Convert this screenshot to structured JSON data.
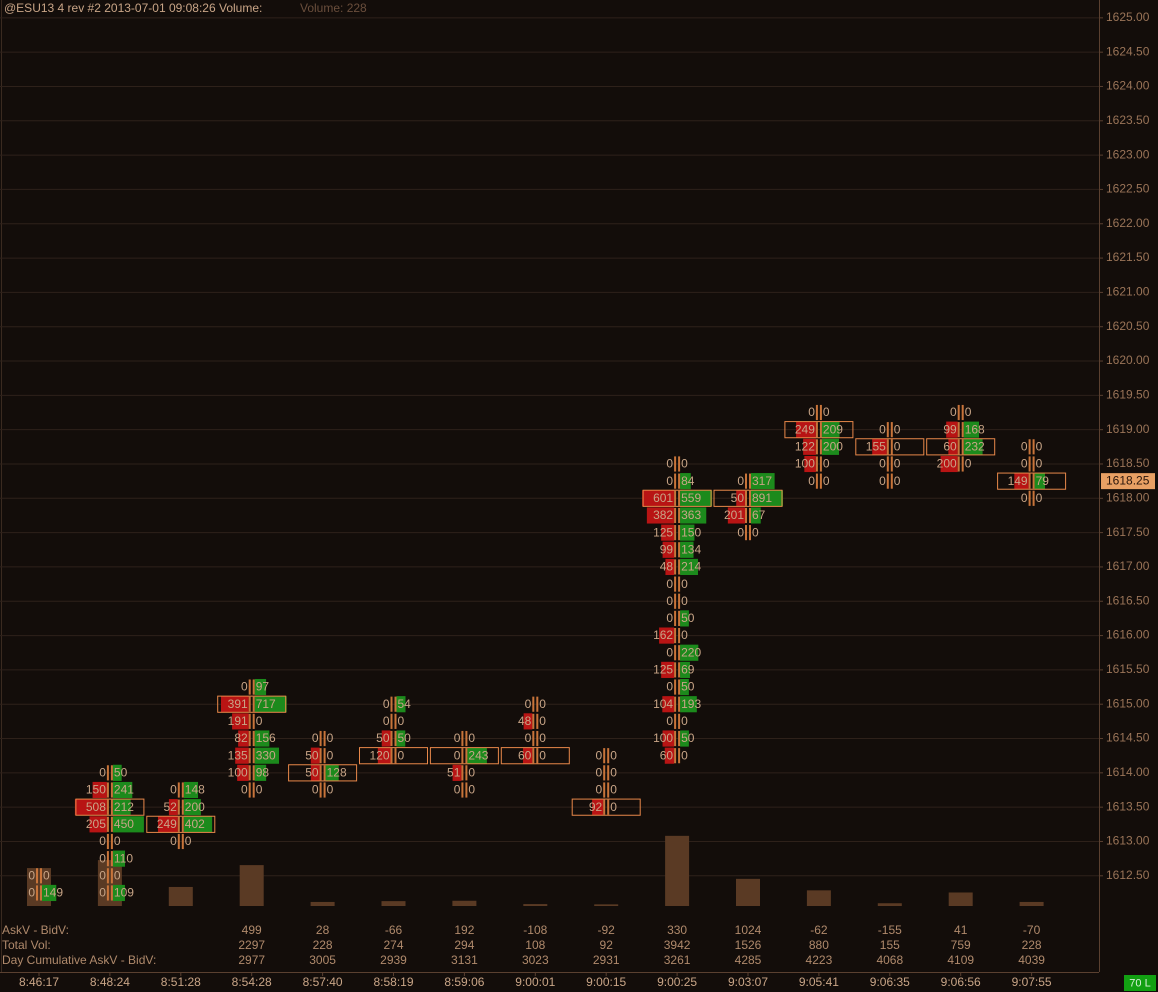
{
  "chart_data": {
    "type": "footprint",
    "title": "@ESU13  4 rev  #2 2013-07-01 09:08:26 Volume:",
    "subtitle": "Volume: 228",
    "ylim": [
      1612.06,
      1625.26
    ],
    "yticks": [
      {
        "value": 1612.5,
        "label": "1612.50"
      },
      {
        "value": 1613,
        "label": "1613.00"
      },
      {
        "value": 1613.5,
        "label": "1613.50"
      },
      {
        "value": 1614,
        "label": "1614.00"
      },
      {
        "value": 1614.5,
        "label": "1614.50"
      },
      {
        "value": 1615,
        "label": "1615.00"
      },
      {
        "value": 1615.5,
        "label": "1615.50"
      },
      {
        "value": 1616,
        "label": "1616.00"
      },
      {
        "value": 1616.5,
        "label": "1616.50"
      },
      {
        "value": 1617,
        "label": "1617.00"
      },
      {
        "value": 1617.5,
        "label": "1617.50"
      },
      {
        "value": 1618,
        "label": "1618.00"
      },
      {
        "value": 1618.5,
        "label": "1618.50"
      },
      {
        "value": 1619,
        "label": "1619.00"
      },
      {
        "value": 1619.5,
        "label": "1619.50"
      },
      {
        "value": 1620,
        "label": "1620.00"
      },
      {
        "value": 1620.5,
        "label": "1620.50"
      },
      {
        "value": 1621,
        "label": "1621.00"
      },
      {
        "value": 1621.5,
        "label": "1621.50"
      },
      {
        "value": 1622,
        "label": "1622.00"
      },
      {
        "value": 1622.5,
        "label": "1622.50"
      },
      {
        "value": 1623,
        "label": "1623.00"
      },
      {
        "value": 1623.5,
        "label": "1623.50"
      },
      {
        "value": 1624,
        "label": "1624.00"
      },
      {
        "value": 1624.5,
        "label": "1624.50"
      },
      {
        "value": 1625,
        "label": "1625.00"
      }
    ],
    "grid": true,
    "last_price": {
      "value": 1618.25,
      "label": "1618.25"
    },
    "summary_labels": [
      "AskV - BidV:",
      "Total Vol:",
      "Day Cumulative AskV - BidV:"
    ],
    "status": "70 L",
    "bid_color": "#b81414",
    "ask_color": "#1c8a1c",
    "volume_color": "#5a3a24",
    "columns": [
      {
        "time": "8:46:17",
        "volume": 2130,
        "rows": [
          {
            "price": 1612.5,
            "bid": 0,
            "ask": 0
          },
          {
            "price": 1612.25,
            "bid": 0,
            "ask": 149
          }
        ]
      },
      {
        "time": "8:48:24",
        "volume": 2580,
        "rows": [
          {
            "price": 1614,
            "bid": 0,
            "ask": 50
          },
          {
            "price": 1613.75,
            "bid": 150,
            "ask": 241
          },
          {
            "price": 1613.5,
            "bid": 508,
            "ask": 212,
            "poc": true
          },
          {
            "price": 1613.25,
            "bid": 205,
            "ask": 450
          },
          {
            "price": 1613,
            "bid": 0,
            "ask": 0
          },
          {
            "price": 1612.75,
            "bid": 0,
            "ask": 110
          },
          {
            "price": 1612.5,
            "bid": 0,
            "ask": 0
          },
          {
            "price": 1612.25,
            "bid": 0,
            "ask": 109
          }
        ]
      },
      {
        "time": "8:51:28",
        "volume": 1070,
        "rows": [
          {
            "price": 1613.75,
            "bid": 0,
            "ask": 148
          },
          {
            "price": 1613.5,
            "bid": 52,
            "ask": 200
          },
          {
            "price": 1613.25,
            "bid": 249,
            "ask": 402,
            "poc": true
          },
          {
            "price": 1613,
            "bid": 0,
            "ask": 0
          }
        ]
      },
      {
        "time": "8:54:28",
        "ask_minus_bid": 499,
        "total_vol": 2297,
        "day_cum": 2977,
        "rows": [
          {
            "price": 1615.25,
            "bid": 0,
            "ask": 97
          },
          {
            "price": 1615,
            "bid": 391,
            "ask": 717,
            "poc": true
          },
          {
            "price": 1614.75,
            "bid": 191,
            "ask": 0
          },
          {
            "price": 1614.5,
            "bid": 82,
            "ask": 156
          },
          {
            "price": 1614.25,
            "bid": 135,
            "ask": 330
          },
          {
            "price": 1614,
            "bid": 100,
            "ask": 98
          },
          {
            "price": 1613.75,
            "bid": 0,
            "ask": 0
          }
        ]
      },
      {
        "time": "8:57:40",
        "ask_minus_bid": 28,
        "total_vol": 228,
        "day_cum": 3005,
        "rows": [
          {
            "price": 1614.5,
            "bid": 0,
            "ask": 0
          },
          {
            "price": 1614.25,
            "bid": 50,
            "ask": 0
          },
          {
            "price": 1614,
            "bid": 50,
            "ask": 128,
            "poc": true
          },
          {
            "price": 1613.75,
            "bid": 0,
            "ask": 0
          }
        ]
      },
      {
        "time": "8:58:19",
        "ask_minus_bid": -66,
        "total_vol": 274,
        "day_cum": 2939,
        "rows": [
          {
            "price": 1615,
            "bid": 0,
            "ask": 54
          },
          {
            "price": 1614.75,
            "bid": 0,
            "ask": 0
          },
          {
            "price": 1614.5,
            "bid": 50,
            "ask": 50
          },
          {
            "price": 1614.25,
            "bid": 120,
            "ask": 0,
            "poc": true
          }
        ]
      },
      {
        "time": "8:59:06",
        "ask_minus_bid": 192,
        "total_vol": 294,
        "day_cum": 3131,
        "rows": [
          {
            "price": 1614.5,
            "bid": 0,
            "ask": 0
          },
          {
            "price": 1614.25,
            "bid": 0,
            "ask": 243,
            "poc": true
          },
          {
            "price": 1614,
            "bid": 51,
            "ask": 0
          },
          {
            "price": 1613.75,
            "bid": 0,
            "ask": 0
          }
        ]
      },
      {
        "time": "9:00:01",
        "ask_minus_bid": -108,
        "total_vol": 108,
        "day_cum": 3023,
        "rows": [
          {
            "price": 1615,
            "bid": 0,
            "ask": 0
          },
          {
            "price": 1614.75,
            "bid": 48,
            "ask": 0
          },
          {
            "price": 1614.5,
            "bid": 0,
            "ask": 0
          },
          {
            "price": 1614.25,
            "bid": 60,
            "ask": 0,
            "poc": true
          }
        ]
      },
      {
        "time": "9:00:15",
        "ask_minus_bid": -92,
        "total_vol": 92,
        "day_cum": 2931,
        "rows": [
          {
            "price": 1614.25,
            "bid": 0,
            "ask": 0
          },
          {
            "price": 1614,
            "bid": 0,
            "ask": 0
          },
          {
            "price": 1613.75,
            "bid": 0,
            "ask": 0
          },
          {
            "price": 1613.5,
            "bid": 92,
            "ask": 0,
            "poc": true
          }
        ]
      },
      {
        "time": "9:00:25",
        "ask_minus_bid": 330,
        "total_vol": 3942,
        "day_cum": 3261,
        "rows": [
          {
            "price": 1618.5,
            "bid": 0,
            "ask": 0
          },
          {
            "price": 1618.25,
            "bid": 0,
            "ask": 84
          },
          {
            "price": 1618,
            "bid": 601,
            "ask": 559,
            "poc": true
          },
          {
            "price": 1617.75,
            "bid": 382,
            "ask": 363
          },
          {
            "price": 1617.5,
            "bid": 125,
            "ask": 150
          },
          {
            "price": 1617.25,
            "bid": 99,
            "ask": 134
          },
          {
            "price": 1617,
            "bid": 48,
            "ask": 214
          },
          {
            "price": 1616.75,
            "bid": 0,
            "ask": 0
          },
          {
            "price": 1616.5,
            "bid": 0,
            "ask": 0
          },
          {
            "price": 1616.25,
            "bid": 0,
            "ask": 50
          },
          {
            "price": 1616,
            "bid": 162,
            "ask": 0
          },
          {
            "price": 1615.75,
            "bid": 0,
            "ask": 220
          },
          {
            "price": 1615.5,
            "bid": 125,
            "ask": 69
          },
          {
            "price": 1615.25,
            "bid": 0,
            "ask": 50
          },
          {
            "price": 1615,
            "bid": 104,
            "ask": 193
          },
          {
            "price": 1614.75,
            "bid": 0,
            "ask": 0
          },
          {
            "price": 1614.5,
            "bid": 100,
            "ask": 50
          },
          {
            "price": 1614.25,
            "bid": 60,
            "ask": 0
          }
        ]
      },
      {
        "time": "9:03:07",
        "ask_minus_bid": 1024,
        "total_vol": 1526,
        "day_cum": 4285,
        "rows": [
          {
            "price": 1618.25,
            "bid": 0,
            "ask": 317
          },
          {
            "price": 1618,
            "bid": 50,
            "ask": 891,
            "poc": true
          },
          {
            "price": 1617.75,
            "bid": 201,
            "ask": 67
          },
          {
            "price": 1617.5,
            "bid": 0,
            "ask": 0
          }
        ]
      },
      {
        "time": "9:05:41",
        "ask_minus_bid": -62,
        "total_vol": 880,
        "day_cum": 4223,
        "rows": [
          {
            "price": 1619.25,
            "bid": 0,
            "ask": 0
          },
          {
            "price": 1619,
            "bid": 249,
            "ask": 209,
            "poc": true
          },
          {
            "price": 1618.75,
            "bid": 122,
            "ask": 200
          },
          {
            "price": 1618.5,
            "bid": 100,
            "ask": 0
          },
          {
            "price": 1618.25,
            "bid": 0,
            "ask": 0
          }
        ]
      },
      {
        "time": "9:06:35",
        "ask_minus_bid": -155,
        "total_vol": 155,
        "day_cum": 4068,
        "rows": [
          {
            "price": 1619,
            "bid": 0,
            "ask": 0
          },
          {
            "price": 1618.75,
            "bid": 155,
            "ask": 0,
            "poc": true
          },
          {
            "price": 1618.5,
            "bid": 0,
            "ask": 0
          },
          {
            "price": 1618.25,
            "bid": 0,
            "ask": 0
          }
        ]
      },
      {
        "time": "9:06:56",
        "ask_minus_bid": 41,
        "total_vol": 759,
        "day_cum": 4109,
        "rows": [
          {
            "price": 1619.25,
            "bid": 0,
            "ask": 0
          },
          {
            "price": 1619,
            "bid": 99,
            "ask": 168
          },
          {
            "price": 1618.75,
            "bid": 60,
            "ask": 232,
            "poc": true
          },
          {
            "price": 1618.5,
            "bid": 200,
            "ask": 0
          }
        ]
      },
      {
        "time": "9:07:55",
        "ask_minus_bid": -70,
        "total_vol": 228,
        "day_cum": 4039,
        "rows": [
          {
            "price": 1618.75,
            "bid": 0,
            "ask": 0
          },
          {
            "price": 1618.5,
            "bid": 0,
            "ask": 0
          },
          {
            "price": 1618.25,
            "bid": 149,
            "ask": 79,
            "poc": true
          },
          {
            "price": 1618,
            "bid": 0,
            "ask": 0
          }
        ]
      }
    ]
  }
}
